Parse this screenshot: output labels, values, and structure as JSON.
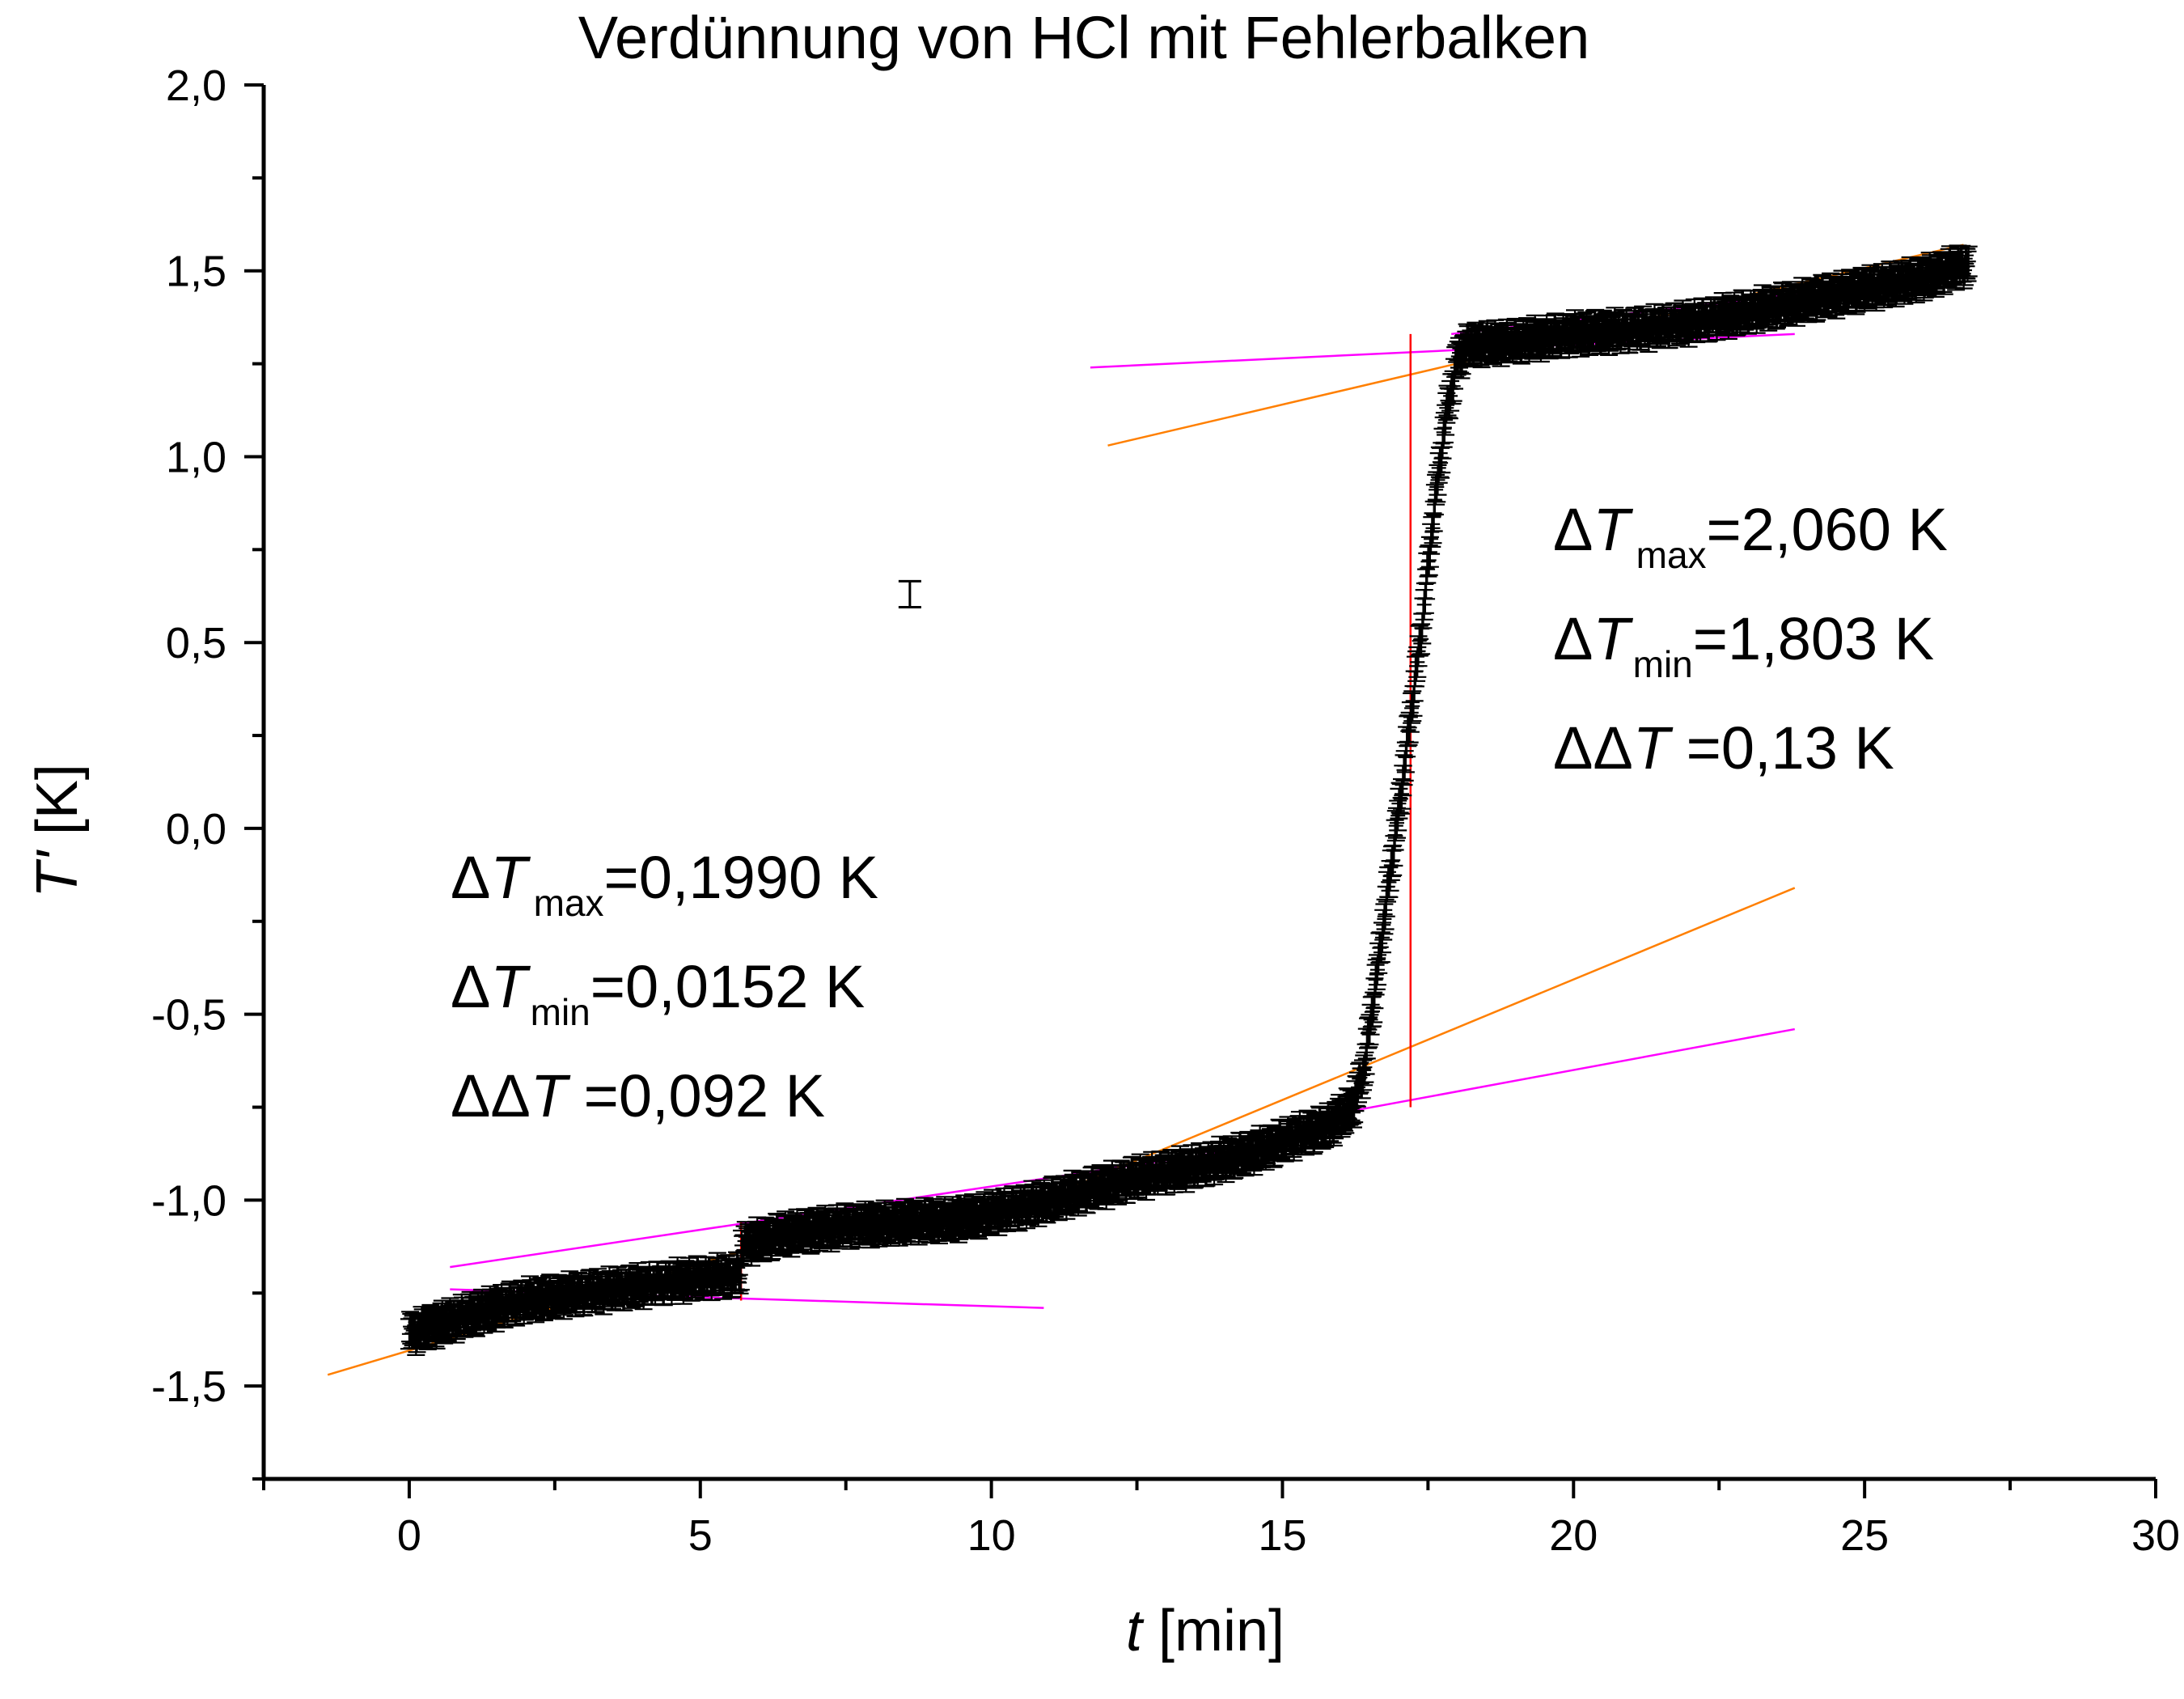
{
  "chart_data": {
    "type": "scatter",
    "title": "Verdünnung von HCl mit Fehlerbalken",
    "xlabel": {
      "var": "t",
      "unit": " [min]"
    },
    "ylabel": {
      "var": "T'",
      "unit": " [K]"
    },
    "xlim": [
      -2.5,
      30
    ],
    "ylim": [
      -1.75,
      2.0
    ],
    "xticks": [
      0,
      5,
      10,
      15,
      20,
      25,
      30
    ],
    "xtick_labels": [
      "0",
      "5",
      "10",
      "15",
      "20",
      "25",
      "30"
    ],
    "yticks": [
      -1.5,
      -1.0,
      -0.5,
      0.0,
      0.5,
      1.0,
      1.5,
      2.0
    ],
    "ytick_labels": [
      "-1,5",
      "-1,0",
      "-0,5",
      "0,0",
      "0,5",
      "1,0",
      "1,5",
      "2,0"
    ],
    "grid": false,
    "error_bar_half_height": 0.04,
    "measurement_curve": {
      "color": "#000000",
      "t": [
        0,
        1,
        2,
        3,
        4,
        5,
        5.7,
        5.7,
        6.5,
        7.5,
        8.5,
        9.5,
        10.5,
        11.5,
        12.5,
        13.5,
        14.5,
        15.2,
        15.8,
        16.2,
        16.4,
        16.6,
        16.8,
        17.0,
        17.2,
        17.4,
        17.6,
        17.8,
        18.0,
        18.2,
        19,
        20,
        21,
        22,
        23,
        24,
        25,
        26,
        26.8
      ],
      "T": [
        -1.36,
        -1.31,
        -1.27,
        -1.25,
        -1.23,
        -1.21,
        -1.2,
        -1.12,
        -1.09,
        -1.07,
        -1.06,
        -1.05,
        -1.02,
        -0.98,
        -0.94,
        -0.91,
        -0.87,
        -0.83,
        -0.8,
        -0.75,
        -0.65,
        -0.42,
        -0.18,
        0.05,
        0.3,
        0.55,
        0.85,
        1.1,
        1.26,
        1.3,
        1.31,
        1.33,
        1.34,
        1.36,
        1.39,
        1.42,
        1.45,
        1.48,
        1.52
      ]
    },
    "single_error_bar": {
      "t": 8.6,
      "T": 0.63,
      "half_height": 0.035
    },
    "fit_lines": [
      {
        "color": "#ff7f00",
        "x": [
          -1.4,
          7.8
        ],
        "y": [
          -1.47,
          -1.04
        ]
      },
      {
        "color": "#ff00ff",
        "x": [
          0.7,
          10.9
        ],
        "y": [
          -1.24,
          -1.29
        ]
      },
      {
        "color": "#ff00ff",
        "x": [
          0.7,
          14.0
        ],
        "y": [
          -1.18,
          -0.87
        ]
      },
      {
        "color": "#ff7f00",
        "x": [
          9.3,
          23.8
        ],
        "y": [
          -1.1,
          -0.16
        ]
      },
      {
        "color": "#ff00ff",
        "x": [
          11.7,
          23.8
        ],
        "y": [
          1.24,
          1.33
        ]
      },
      {
        "color": "#ff7f00",
        "x": [
          12.0,
          26.7
        ],
        "y": [
          1.03,
          1.57
        ]
      },
      {
        "color": "#ff00ff",
        "x": [
          15.5,
          23.8
        ],
        "y": [
          -0.78,
          -0.54
        ]
      },
      {
        "color": "#ff00ff",
        "x": [
          17.9,
          26.8
        ],
        "y": [
          1.33,
          1.49
        ]
      },
      {
        "color": "#ff0000",
        "x": [
          5.7,
          5.7
        ],
        "y": [
          -1.27,
          -1.06
        ]
      },
      {
        "color": "#ff0000",
        "x": [
          17.2,
          17.2
        ],
        "y": [
          -0.75,
          1.33
        ]
      }
    ],
    "annotations": [
      {
        "id": "right-max",
        "delta": "Δ",
        "var": "T",
        "sub": "max",
        "value": "=2,060 K"
      },
      {
        "id": "right-min",
        "delta": "Δ",
        "var": "T",
        "sub": "min",
        "value": "=1,803 K"
      },
      {
        "id": "right-dd",
        "delta": "ΔΔ",
        "var": "T",
        "sub": "",
        "value": " =0,13 K"
      },
      {
        "id": "left-max",
        "delta": "Δ",
        "var": "T",
        "sub": "max",
        "value": "=0,1990 K"
      },
      {
        "id": "left-min",
        "delta": "Δ",
        "var": "T",
        "sub": "min",
        "value": "=0,0152 K"
      },
      {
        "id": "left-dd",
        "delta": "ΔΔ",
        "var": "T",
        "sub": "",
        "value": " =0,092 K"
      }
    ]
  }
}
